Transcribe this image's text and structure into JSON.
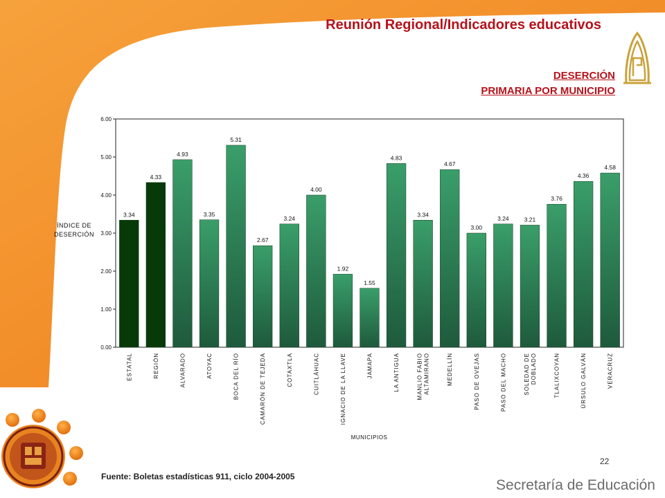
{
  "header": {
    "title_part1": "Reunión Regional",
    "title_sep": "/",
    "title_part2": "Indicadores educativos"
  },
  "subtitle": {
    "line1": "DESERCIÓN",
    "line2": "PRIMARIA POR MUNICIPIO"
  },
  "chart_data": {
    "type": "bar",
    "ylabel_lines": [
      "ÍNDICE DE",
      "DESERCIÓN"
    ],
    "xlabel": "MUNICIPIOS",
    "ylim": [
      0,
      6
    ],
    "yticks": [
      "0.00",
      "1.00",
      "2.00",
      "3.00",
      "4.00",
      "5.00",
      "6.00"
    ],
    "grid": false,
    "categories": [
      [
        "ESTATAL"
      ],
      [
        "REGIÓN"
      ],
      [
        "ALVARADO"
      ],
      [
        "ATOYAC"
      ],
      [
        "BOCA DEL RÍO"
      ],
      [
        "CAMARÓN DE TEJEDA"
      ],
      [
        "COTAXTLA"
      ],
      [
        "CUITLÁHUAC"
      ],
      [
        "IGNACIO DE LA LLAVE"
      ],
      [
        "JAMAPA"
      ],
      [
        "LA ANTIGUA"
      ],
      [
        "MANLIO FABIO",
        "ALTAMIRANO"
      ],
      [
        "MEDELLÍN"
      ],
      [
        "PASO DE OVEJAS"
      ],
      [
        "PASO DEL MACHO"
      ],
      [
        "SOLEDAD DE",
        "DOBLADO"
      ],
      [
        "TLALIXCOYAN"
      ],
      [
        "ÚRSULO GALVÁN"
      ],
      [
        "VERACRUZ"
      ]
    ],
    "values": [
      3.34,
      4.33,
      4.93,
      3.35,
      5.31,
      2.67,
      3.24,
      4.0,
      1.92,
      1.55,
      4.83,
      3.34,
      4.67,
      3.0,
      3.24,
      3.21,
      3.76,
      4.36,
      4.58
    ],
    "value_labels": [
      "3.34",
      "4.33",
      "4.93",
      "3.35",
      "5.31",
      "2.67",
      "3.24",
      "4.00",
      "1.92",
      "1.55",
      "4.83",
      "3.34",
      "4.67",
      "3.00",
      "3.24",
      "3.21",
      "3.76",
      "4.36",
      "4.58"
    ],
    "bar_colors": {
      "highlight": "#073a08",
      "normal_top": "#3a9e6a",
      "normal_bottom": "#1e5a3c"
    },
    "highlight_indices": [
      0,
      1
    ]
  },
  "footer": {
    "page_number": "22",
    "source": "Fuente: Boletas estadísticas  911, ciclo 2004-2005",
    "brand": "Secretaría de Educación"
  },
  "colors": {
    "frame_orange": "#f07d1a",
    "title_red": "#b5121b",
    "logo_gold": "#c9a23a"
  }
}
